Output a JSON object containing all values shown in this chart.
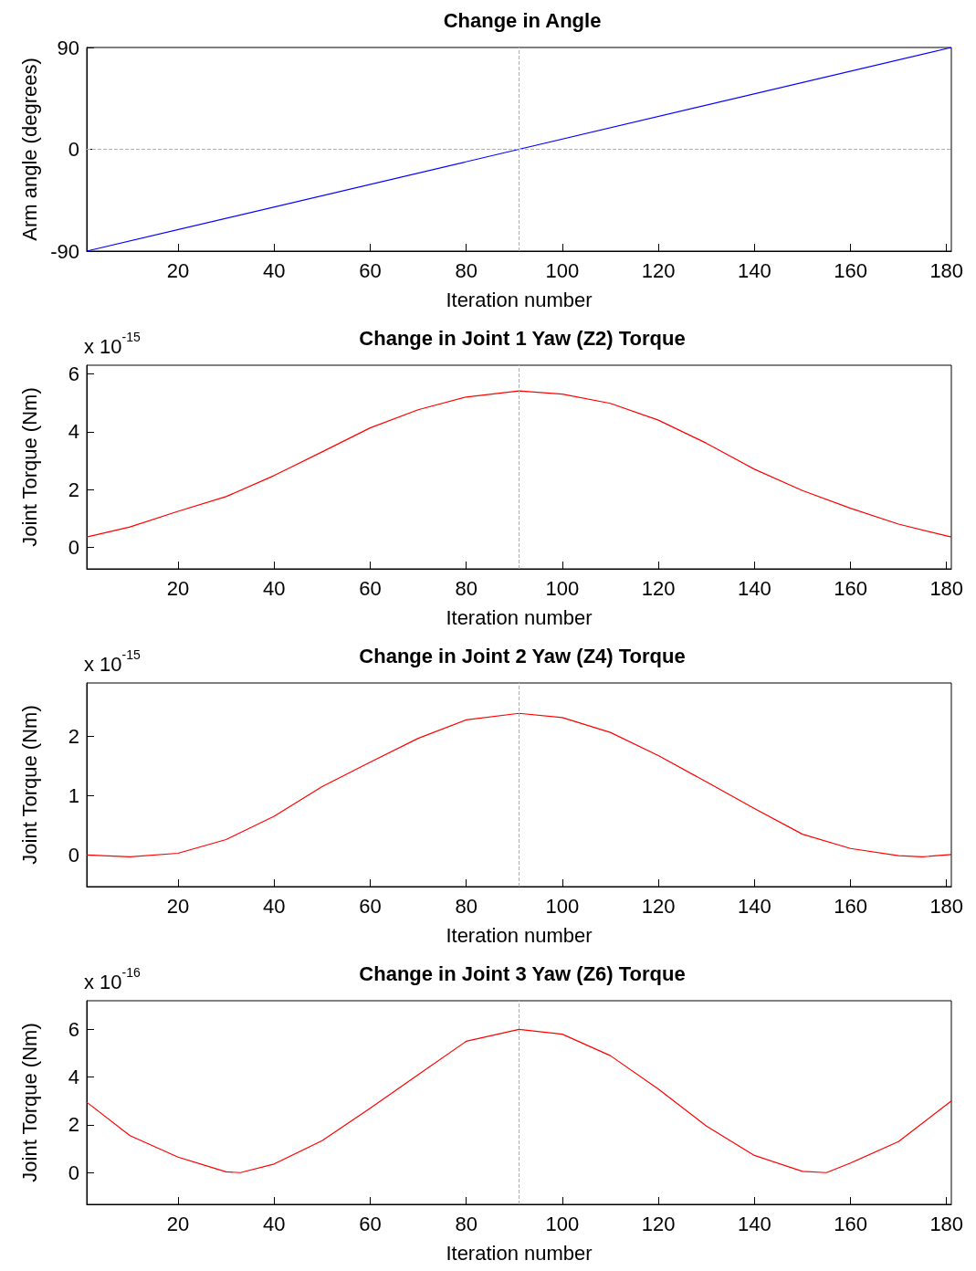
{
  "chart_data": [
    {
      "type": "line",
      "title": "Change in Angle",
      "xlabel": "Iteration number",
      "ylabel": "Arm angle (degrees)",
      "x": [
        1,
        181
      ],
      "series": [
        {
          "color": "#0000ff",
          "values": [
            -90,
            90
          ]
        }
      ],
      "xlim": [
        1,
        181
      ],
      "xticks": [
        20,
        40,
        60,
        80,
        100,
        120,
        140,
        160,
        180
      ],
      "ylim": [
        -90,
        90
      ],
      "yticks": [
        -90,
        0,
        90
      ],
      "marker": "none",
      "ref_lines": [
        {
          "axis": "x",
          "value": 91,
          "color": "#b0b0b0",
          "line_style": "dashed"
        },
        {
          "axis": "y",
          "value": 0,
          "color": "#b0b0b0",
          "line_style": "dashed"
        }
      ]
    },
    {
      "type": "line",
      "title": "Change in Joint 1 Yaw (Z2) Torque",
      "xlabel": "Iteration number",
      "ylabel": "Joint Torque (Nm)",
      "annotations": [
        "x 10$^{-15}$"
      ],
      "x": [
        1,
        10,
        20,
        30,
        40,
        50,
        60,
        70,
        80,
        91,
        100,
        110,
        120,
        130,
        140,
        150,
        160,
        170,
        181
      ],
      "series": [
        {
          "color": "#ff0000",
          "values": [
            0.35,
            0.7,
            1.24,
            1.75,
            2.48,
            3.3,
            4.13,
            4.76,
            5.2,
            5.41,
            5.3,
            4.98,
            4.4,
            3.6,
            2.7,
            1.96,
            1.35,
            0.8,
            0.35
          ]
        }
      ],
      "xlim": [
        1,
        181
      ],
      "xticks": [
        20,
        40,
        60,
        80,
        100,
        120,
        140,
        160,
        180
      ],
      "ylim": [
        -0.75,
        6.3
      ],
      "yticks": [
        0,
        2,
        4,
        6
      ],
      "marker": "none",
      "ref_lines": [
        {
          "axis": "x",
          "value": 91,
          "color": "#b0b0b0",
          "line_style": "dashed"
        }
      ]
    },
    {
      "type": "line",
      "title": "Change in Joint 2 Yaw (Z4) Torque",
      "xlabel": "Iteration number",
      "ylabel": "Joint Torque (Nm)",
      "annotations": [
        "x 10$^{-15}$"
      ],
      "x": [
        1,
        10,
        20,
        30,
        40,
        50,
        60,
        70,
        80,
        91,
        100,
        110,
        120,
        130,
        140,
        150,
        160,
        170,
        175,
        181
      ],
      "series": [
        {
          "color": "#ff0000",
          "values": [
            0,
            -0.03,
            0.03,
            0.26,
            0.65,
            1.15,
            1.56,
            1.96,
            2.27,
            2.38,
            2.31,
            2.06,
            1.67,
            1.23,
            0.78,
            0.35,
            0.11,
            -0.01,
            -0.03,
            0.01
          ]
        }
      ],
      "xlim": [
        1,
        181
      ],
      "xticks": [
        20,
        40,
        60,
        80,
        100,
        120,
        140,
        160,
        180
      ],
      "ylim": [
        -0.53,
        2.89
      ],
      "yticks": [
        0,
        1,
        2
      ],
      "marker": "none",
      "ref_lines": [
        {
          "axis": "x",
          "value": 91,
          "color": "#b0b0b0",
          "line_style": "dashed"
        }
      ]
    },
    {
      "type": "line",
      "title": "Change in Joint 3 Yaw (Z6) Torque",
      "xlabel": "Iteration number",
      "ylabel": "Joint Torque (Nm)",
      "annotations": [
        "x 10$^{-16}$"
      ],
      "x": [
        1,
        10,
        20,
        30,
        33,
        40,
        50,
        60,
        70,
        80,
        91,
        100,
        110,
        120,
        130,
        140,
        150,
        155,
        160,
        170,
        181
      ],
      "series": [
        {
          "color": "#ff0000",
          "values": [
            2.95,
            1.55,
            0.65,
            0.03,
            0,
            0.36,
            1.34,
            2.7,
            4.1,
            5.5,
            6.0,
            5.8,
            4.9,
            3.5,
            1.95,
            0.72,
            0.05,
            0,
            0.4,
            1.3,
            3.0
          ]
        }
      ],
      "xlim": [
        1,
        181
      ],
      "xticks": [
        20,
        40,
        60,
        80,
        100,
        120,
        140,
        160,
        180
      ],
      "ylim": [
        -1.33,
        7.2
      ],
      "yticks": [
        0,
        2,
        4,
        6
      ],
      "marker": "none",
      "ref_lines": [
        {
          "axis": "x",
          "value": 91,
          "color": "#b0b0b0",
          "line_style": "dashed"
        }
      ]
    }
  ]
}
